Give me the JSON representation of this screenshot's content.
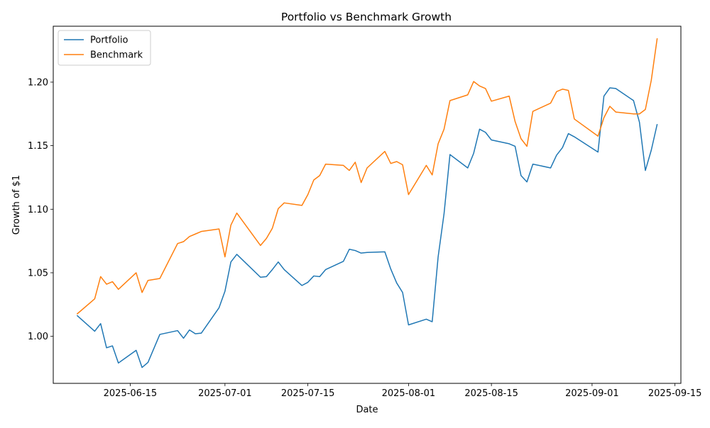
{
  "chart_data": {
    "type": "line",
    "title": "Portfolio vs Benchmark Growth",
    "xlabel": "Date",
    "ylabel": "Growth of $1",
    "xlim": [
      "2025-06-02",
      "2025-09-16"
    ],
    "ylim": [
      0.963,
      1.244
    ],
    "x_ticks": [
      "2025-06-15",
      "2025-07-01",
      "2025-07-15",
      "2025-08-01",
      "2025-08-15",
      "2025-09-01",
      "2025-09-15"
    ],
    "y_ticks": [
      "1.00",
      "1.05",
      "1.10",
      "1.15",
      "1.20"
    ],
    "legend_position": "top-left",
    "grid": false,
    "series": [
      {
        "name": "Portfolio",
        "color": "#1f77b4",
        "points": [
          [
            "2025-06-06",
            1.0165
          ],
          [
            "2025-06-09",
            1.004
          ],
          [
            "2025-06-10",
            1.01
          ],
          [
            "2025-06-11",
            0.991
          ],
          [
            "2025-06-12",
            0.9925
          ],
          [
            "2025-06-13",
            0.979
          ],
          [
            "2025-06-16",
            0.989
          ],
          [
            "2025-06-17",
            0.9755
          ],
          [
            "2025-06-18",
            0.9795
          ],
          [
            "2025-06-20",
            1.0015
          ],
          [
            "2025-06-23",
            1.0045
          ],
          [
            "2025-06-24",
            0.9985
          ],
          [
            "2025-06-25",
            1.005
          ],
          [
            "2025-06-26",
            1.002
          ],
          [
            "2025-06-27",
            1.0025
          ],
          [
            "2025-06-30",
            1.0225
          ],
          [
            "2025-07-01",
            1.0355
          ],
          [
            "2025-07-02",
            1.0585
          ],
          [
            "2025-07-03",
            1.0645
          ],
          [
            "2025-07-07",
            1.0465
          ],
          [
            "2025-07-08",
            1.047
          ],
          [
            "2025-07-09",
            1.0525
          ],
          [
            "2025-07-10",
            1.0585
          ],
          [
            "2025-07-11",
            1.0525
          ],
          [
            "2025-07-14",
            1.04
          ],
          [
            "2025-07-15",
            1.0425
          ],
          [
            "2025-07-16",
            1.0475
          ],
          [
            "2025-07-17",
            1.047
          ],
          [
            "2025-07-18",
            1.0525
          ],
          [
            "2025-07-21",
            1.059
          ],
          [
            "2025-07-22",
            1.0685
          ],
          [
            "2025-07-23",
            1.0675
          ],
          [
            "2025-07-24",
            1.0655
          ],
          [
            "2025-07-25",
            1.066
          ],
          [
            "2025-07-28",
            1.0665
          ],
          [
            "2025-07-29",
            1.053
          ],
          [
            "2025-07-30",
            1.042
          ],
          [
            "2025-07-31",
            1.0345
          ],
          [
            "2025-08-01",
            1.009
          ],
          [
            "2025-08-04",
            1.0135
          ],
          [
            "2025-08-05",
            1.0115
          ],
          [
            "2025-08-06",
            1.0625
          ],
          [
            "2025-08-07",
            1.0965
          ],
          [
            "2025-08-08",
            1.143
          ],
          [
            "2025-08-11",
            1.1325
          ],
          [
            "2025-08-12",
            1.144
          ],
          [
            "2025-08-13",
            1.163
          ],
          [
            "2025-08-14",
            1.1605
          ],
          [
            "2025-08-15",
            1.1545
          ],
          [
            "2025-08-18",
            1.1515
          ],
          [
            "2025-08-19",
            1.1495
          ],
          [
            "2025-08-20",
            1.1265
          ],
          [
            "2025-08-21",
            1.1215
          ],
          [
            "2025-08-22",
            1.1355
          ],
          [
            "2025-08-25",
            1.1325
          ],
          [
            "2025-08-26",
            1.1425
          ],
          [
            "2025-08-27",
            1.1485
          ],
          [
            "2025-08-28",
            1.1595
          ],
          [
            "2025-08-29",
            1.157
          ],
          [
            "2025-09-02",
            1.145
          ],
          [
            "2025-09-03",
            1.189
          ],
          [
            "2025-09-04",
            1.1955
          ],
          [
            "2025-09-05",
            1.195
          ],
          [
            "2025-09-08",
            1.1855
          ],
          [
            "2025-09-09",
            1.1685
          ],
          [
            "2025-09-10",
            1.1305
          ],
          [
            "2025-09-11",
            1.1465
          ],
          [
            "2025-09-12",
            1.167
          ]
        ]
      },
      {
        "name": "Benchmark",
        "color": "#ff7f0e",
        "points": [
          [
            "2025-06-06",
            1.0175
          ],
          [
            "2025-06-09",
            1.0295
          ],
          [
            "2025-06-10",
            1.047
          ],
          [
            "2025-06-11",
            1.041
          ],
          [
            "2025-06-12",
            1.043
          ],
          [
            "2025-06-13",
            1.037
          ],
          [
            "2025-06-16",
            1.05
          ],
          [
            "2025-06-17",
            1.0345
          ],
          [
            "2025-06-18",
            1.044
          ],
          [
            "2025-06-20",
            1.0455
          ],
          [
            "2025-06-23",
            1.073
          ],
          [
            "2025-06-24",
            1.0745
          ],
          [
            "2025-06-25",
            1.0785
          ],
          [
            "2025-06-26",
            1.0805
          ],
          [
            "2025-06-27",
            1.0825
          ],
          [
            "2025-06-30",
            1.0845
          ],
          [
            "2025-07-01",
            1.0625
          ],
          [
            "2025-07-02",
            1.0875
          ],
          [
            "2025-07-03",
            1.097
          ],
          [
            "2025-07-07",
            1.0715
          ],
          [
            "2025-07-08",
            1.077
          ],
          [
            "2025-07-09",
            1.085
          ],
          [
            "2025-07-10",
            1.1005
          ],
          [
            "2025-07-11",
            1.105
          ],
          [
            "2025-07-14",
            1.103
          ],
          [
            "2025-07-15",
            1.1115
          ],
          [
            "2025-07-16",
            1.123
          ],
          [
            "2025-07-17",
            1.1265
          ],
          [
            "2025-07-18",
            1.1355
          ],
          [
            "2025-07-21",
            1.1345
          ],
          [
            "2025-07-22",
            1.1305
          ],
          [
            "2025-07-23",
            1.137
          ],
          [
            "2025-07-24",
            1.121
          ],
          [
            "2025-07-25",
            1.1325
          ],
          [
            "2025-07-28",
            1.1455
          ],
          [
            "2025-07-29",
            1.136
          ],
          [
            "2025-07-30",
            1.1375
          ],
          [
            "2025-07-31",
            1.135
          ],
          [
            "2025-08-01",
            1.1115
          ],
          [
            "2025-08-04",
            1.1345
          ],
          [
            "2025-08-05",
            1.127
          ],
          [
            "2025-08-06",
            1.1515
          ],
          [
            "2025-08-07",
            1.163
          ],
          [
            "2025-08-08",
            1.1855
          ],
          [
            "2025-08-11",
            1.19
          ],
          [
            "2025-08-12",
            1.2005
          ],
          [
            "2025-08-13",
            1.197
          ],
          [
            "2025-08-14",
            1.195
          ],
          [
            "2025-08-15",
            1.185
          ],
          [
            "2025-08-18",
            1.189
          ],
          [
            "2025-08-19",
            1.169
          ],
          [
            "2025-08-20",
            1.1555
          ],
          [
            "2025-08-21",
            1.1495
          ],
          [
            "2025-08-22",
            1.177
          ],
          [
            "2025-08-25",
            1.1835
          ],
          [
            "2025-08-26",
            1.1925
          ],
          [
            "2025-08-27",
            1.1945
          ],
          [
            "2025-08-28",
            1.1935
          ],
          [
            "2025-08-29",
            1.171
          ],
          [
            "2025-09-02",
            1.1575
          ],
          [
            "2025-09-03",
            1.172
          ],
          [
            "2025-09-04",
            1.181
          ],
          [
            "2025-09-05",
            1.1765
          ],
          [
            "2025-09-08",
            1.175
          ],
          [
            "2025-09-09",
            1.175
          ],
          [
            "2025-09-10",
            1.1785
          ],
          [
            "2025-09-11",
            1.2015
          ],
          [
            "2025-09-12",
            1.2345
          ]
        ]
      }
    ]
  }
}
